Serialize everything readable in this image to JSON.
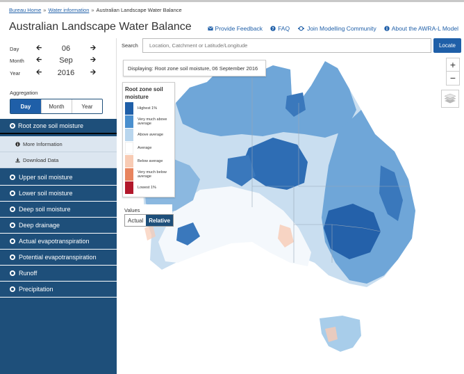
{
  "breadcrumb": {
    "items": [
      "Bureau Home",
      "Water information",
      "Australian Landscape Water Balance"
    ],
    "separator": "»"
  },
  "header": {
    "title": "Australian Landscape Water Balance",
    "links": [
      {
        "label": "Provide Feedback",
        "icon": "envelope-icon"
      },
      {
        "label": "FAQ",
        "icon": "question-circle-icon"
      },
      {
        "label": "Join Modelling Community",
        "icon": "community-icon"
      },
      {
        "label": "About the AWRA-L Model",
        "icon": "info-circle-icon"
      }
    ]
  },
  "date_controls": {
    "day": {
      "label": "Day",
      "value": "06"
    },
    "month": {
      "label": "Month",
      "value": "Sep"
    },
    "year": {
      "label": "Year",
      "value": "2016"
    }
  },
  "aggregation": {
    "label": "Aggregation",
    "options": [
      "Day",
      "Month",
      "Year"
    ],
    "selected": "Day"
  },
  "layers": {
    "active": "Root zone soil moisture",
    "sub_items": [
      {
        "label": "More Information",
        "icon": "info-circle-icon"
      },
      {
        "label": "Download Data",
        "icon": "download-icon"
      }
    ],
    "others": [
      "Upper soil moisture",
      "Lower soil moisture",
      "Deep soil moisture",
      "Deep drainage",
      "Actual evapotranspiration",
      "Potential evapotranspiration",
      "Runoff",
      "Precipitation"
    ]
  },
  "search": {
    "label": "Search",
    "placeholder": "Location, Catchment or Latitude/Longitude",
    "button": "Locate"
  },
  "map": {
    "displaying": "Displaying: Root zone soil moisture, 06 September 2016",
    "legend": {
      "title": "Root zone soil moisture",
      "entries": [
        {
          "label": "Highest 1%",
          "color": "#1f5fa8"
        },
        {
          "label": "Very much above average",
          "color": "#4a8fce"
        },
        {
          "label": "Above average",
          "color": "#b9d6ee"
        },
        {
          "label": "Average",
          "color": "#ffffff"
        },
        {
          "label": "Below average",
          "color": "#f8cbb4"
        },
        {
          "label": "Very much below average",
          "color": "#e8845e"
        },
        {
          "label": "Lowest 1%",
          "color": "#b2182b"
        }
      ]
    },
    "values": {
      "label": "Values",
      "options": [
        "Actual",
        "Relative"
      ],
      "selected": "Relative"
    },
    "zoom": {
      "in": "+",
      "out": "−"
    }
  }
}
